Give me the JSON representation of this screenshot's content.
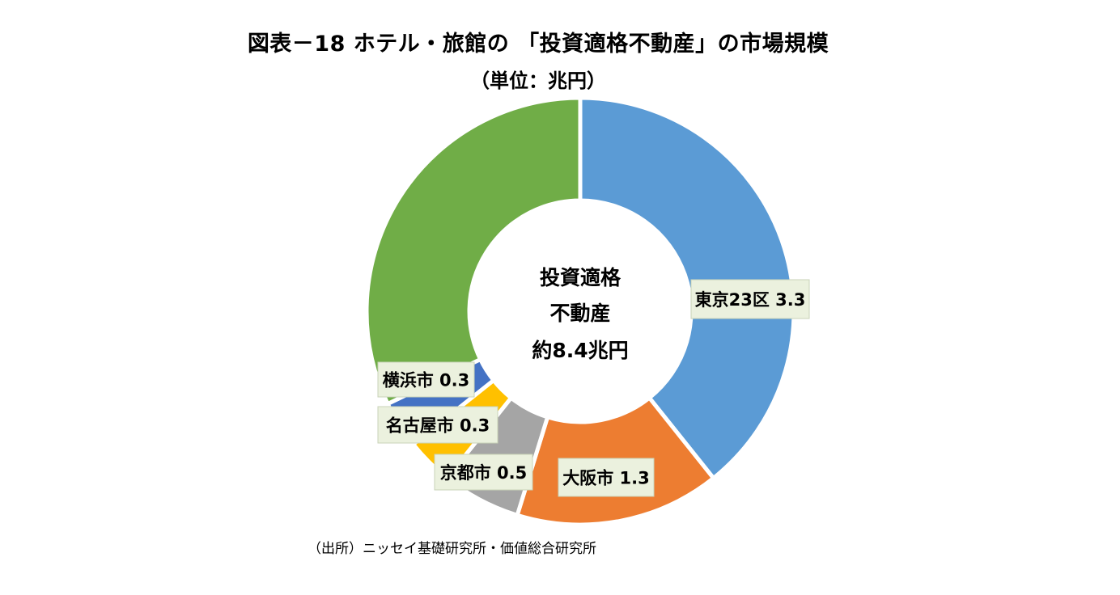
{
  "title": "図表－18 ホテル・旅館の 「投資適格不動産」の市場規模",
  "subtitle": "（単位：兆円）",
  "source": "（出所）ニッセイ基礎研究所・価値総合研究所",
  "chart_data": {
    "type": "pie",
    "variant": "donut",
    "title": "図表－18 ホテル・旅館の 「投資適格不動産」の市場規模",
    "subtitle": "（単位：兆円）",
    "center_text": [
      "投資適格",
      "不動産",
      "約8.4兆円"
    ],
    "total": 8.4,
    "slices": [
      {
        "label": "東京23区",
        "value": 3.3,
        "display": "東京23区 3.3",
        "color": "#5b9bd5"
      },
      {
        "label": "大阪市",
        "value": 1.3,
        "display": "大阪市 1.3",
        "color": "#ed7d31"
      },
      {
        "label": "京都市",
        "value": 0.5,
        "display": "京都市 0.5",
        "color": "#a5a5a5"
      },
      {
        "label": "名古屋市",
        "value": 0.3,
        "display": "名古屋市 0.3",
        "color": "#ffc000"
      },
      {
        "label": "横浜市",
        "value": 0.3,
        "display": "横浜市 0.3",
        "color": "#4472c4"
      },
      {
        "label": "",
        "value": 2.7,
        "display": "",
        "color": "#70ad47"
      }
    ],
    "legend": "none"
  }
}
